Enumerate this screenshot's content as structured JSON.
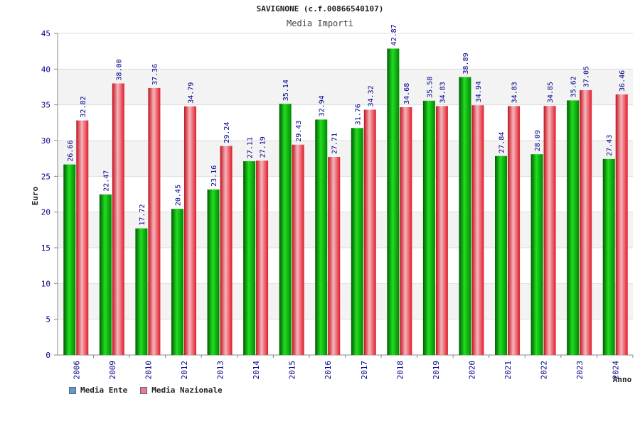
{
  "chart_data": {
    "type": "bar",
    "title": "SAVIGNONE (c.f.00866540107)",
    "subtitle": "Media Importi",
    "xlabel": "Anno",
    "ylabel": "Euro",
    "ylim": [
      0,
      45
    ],
    "yticks": [
      "0",
      "5",
      "10",
      "15",
      "20",
      "25",
      "30",
      "35",
      "40",
      "45"
    ],
    "categories": [
      "2006",
      "2009",
      "2010",
      "2012",
      "2013",
      "2014",
      "2015",
      "2016",
      "2017",
      "2018",
      "2019",
      "2020",
      "2021",
      "2022",
      "2023",
      "2024"
    ],
    "series": [
      {
        "name": "Media Ente",
        "legend_color": "#5b9bd5",
        "color": "#00aa00",
        "values": [
          26.66,
          22.47,
          17.72,
          20.45,
          23.16,
          27.11,
          35.14,
          32.94,
          31.76,
          42.87,
          35.58,
          38.89,
          27.84,
          28.09,
          35.62,
          27.43
        ],
        "labels": [
          "26.66",
          "22.47",
          "17.72",
          "20.45",
          "23.16",
          "27.11",
          "35.14",
          "32.94",
          "31.76",
          "42.87",
          "35.58",
          "38.89",
          "27.84",
          "28.09",
          "35.62",
          "27.43"
        ]
      },
      {
        "name": "Media Nazionale",
        "legend_color": "#e37ba0",
        "color": "#e8202a",
        "values": [
          32.82,
          38.0,
          37.36,
          34.79,
          29.24,
          27.19,
          29.43,
          27.71,
          34.32,
          34.68,
          34.83,
          34.94,
          34.83,
          34.85,
          37.05,
          36.46
        ],
        "labels": [
          "32.82",
          "38.00",
          "37.36",
          "34.79",
          "29.24",
          "27.19",
          "29.43",
          "27.71",
          "34.32",
          "34.68",
          "34.83",
          "34.94",
          "34.83",
          "34.85",
          "37.05",
          "36.46"
        ]
      }
    ],
    "grid": true,
    "legend_position": "bottom-left"
  }
}
